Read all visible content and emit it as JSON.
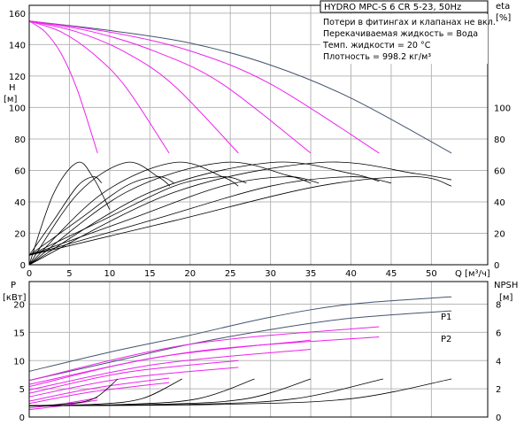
{
  "title": "HYDRO MPC-S 6 CR 5-23, 50Hz",
  "info_lines": [
    "Потери в фитингах и клапанах не вкл.",
    "Перекачиваемая жидкость = Вода",
    "Темп. жидкости = 20 °C",
    "Плотность = 998.2 кг/м³"
  ],
  "colors": {
    "envelope": "#44546e",
    "curve": "#ee22ee",
    "eta": "#000000",
    "grid": "#b8b8b8",
    "npsh": "#000000"
  },
  "chart_data": [
    {
      "type": "line",
      "name": "head",
      "y_axis": {
        "label": "H",
        "unit": "[м]",
        "ticks": [
          0,
          20,
          40,
          60,
          80,
          100,
          120,
          140,
          160
        ],
        "ylim": [
          0,
          165
        ]
      },
      "y2_axis": {
        "label": "eta",
        "unit": "[%]",
        "ticks": [
          0,
          20,
          40,
          60,
          80,
          100
        ],
        "ylim": [
          0,
          165
        ]
      },
      "x_axis": {
        "label": "Q [м³/ч]",
        "ticks": [
          0,
          5,
          10,
          15,
          20,
          25,
          30,
          35,
          40,
          45,
          50
        ],
        "xlim": [
          0,
          57
        ]
      },
      "grid": true,
      "series": [
        {
          "kind": "H-envelope",
          "points": [
            [
              0,
              155
            ],
            [
              10,
              149
            ],
            [
              20,
              141
            ],
            [
              30,
              127
            ],
            [
              40,
              106
            ],
            [
              52.5,
              71
            ]
          ]
        },
        {
          "kind": "H",
          "points": [
            [
              0,
              155
            ],
            [
              2,
              148
            ],
            [
              4,
              134
            ],
            [
              6,
              111
            ],
            [
              8.5,
              71
            ]
          ]
        },
        {
          "kind": "H",
          "points": [
            [
              0,
              155
            ],
            [
              4,
              148
            ],
            [
              8,
              134
            ],
            [
              12,
              113
            ],
            [
              17.4,
              71
            ]
          ]
        },
        {
          "kind": "H",
          "points": [
            [
              0,
              155
            ],
            [
              6,
              148
            ],
            [
              12,
              135
            ],
            [
              18,
              114
            ],
            [
              26,
              71
            ]
          ]
        },
        {
          "kind": "H",
          "points": [
            [
              0,
              155
            ],
            [
              8,
              148
            ],
            [
              16,
              135
            ],
            [
              24,
              115
            ],
            [
              35,
              71
            ]
          ]
        },
        {
          "kind": "H",
          "points": [
            [
              0,
              155
            ],
            [
              10,
              148
            ],
            [
              20,
              136
            ],
            [
              30,
              115
            ],
            [
              43.5,
              71
            ]
          ]
        },
        {
          "kind": "eta",
          "points": [
            [
              0,
              0
            ],
            [
              3,
              45
            ],
            [
              6,
              65
            ],
            [
              8,
              55
            ],
            [
              10,
              35
            ]
          ]
        },
        {
          "kind": "eta",
          "points": [
            [
              0,
              0
            ],
            [
              6,
              45
            ],
            [
              12,
              65
            ],
            [
              16,
              56
            ],
            [
              17.5,
              50
            ]
          ]
        },
        {
          "kind": "eta",
          "points": [
            [
              0,
              0
            ],
            [
              9,
              45
            ],
            [
              18,
              65
            ],
            [
              24,
              56
            ],
            [
              26,
              50
            ]
          ]
        },
        {
          "kind": "eta",
          "points": [
            [
              0,
              0
            ],
            [
              12,
              46
            ],
            [
              24,
              65
            ],
            [
              32,
              57
            ],
            [
              35,
              52
            ]
          ]
        },
        {
          "kind": "eta",
          "points": [
            [
              0,
              0
            ],
            [
              15,
              46
            ],
            [
              30,
              65
            ],
            [
              40,
              58
            ],
            [
              43.5,
              53
            ]
          ]
        },
        {
          "kind": "eta",
          "points": [
            [
              0,
              0
            ],
            [
              18,
              46
            ],
            [
              36,
              65
            ],
            [
              48,
              58
            ],
            [
              52.5,
              54
            ]
          ]
        },
        {
          "kind": "eta",
          "points": [
            [
              0,
              6
            ],
            [
              3,
              28
            ],
            [
              6,
              50
            ],
            [
              8,
              56
            ],
            [
              9,
              52
            ]
          ]
        },
        {
          "kind": "eta",
          "points": [
            [
              0,
              6
            ],
            [
              6,
              28
            ],
            [
              12,
              50
            ],
            [
              16,
              56
            ],
            [
              18,
              52
            ]
          ]
        },
        {
          "kind": "eta",
          "points": [
            [
              0,
              6
            ],
            [
              9,
              28
            ],
            [
              18,
              50
            ],
            [
              24,
              56
            ],
            [
              27,
              52
            ]
          ]
        },
        {
          "kind": "eta",
          "points": [
            [
              0,
              6
            ],
            [
              12,
              28
            ],
            [
              24,
              50
            ],
            [
              32,
              56
            ],
            [
              36,
              52
            ]
          ]
        },
        {
          "kind": "eta",
          "points": [
            [
              0,
              6
            ],
            [
              15,
              28
            ],
            [
              30,
              50
            ],
            [
              40,
              56
            ],
            [
              45,
              52
            ]
          ]
        },
        {
          "kind": "eta",
          "points": [
            [
              0,
              6
            ],
            [
              18,
              28
            ],
            [
              36,
              50
            ],
            [
              48,
              56
            ],
            [
              52.5,
              50
            ]
          ]
        }
      ]
    },
    {
      "type": "line",
      "name": "power",
      "y_axis": {
        "label": "P",
        "unit": "[кВт]",
        "ticks": [
          0,
          5,
          10,
          15,
          20
        ],
        "ylim": [
          0,
          24
        ]
      },
      "y2_axis": {
        "label": "NPSH",
        "unit": "[м]",
        "ticks": [
          0,
          2,
          4,
          6,
          8
        ],
        "ylim": [
          0,
          9.6
        ]
      },
      "x_axis": {
        "xlim": [
          0,
          57
        ]
      },
      "grid": true,
      "series": [
        {
          "name": "P1",
          "kind": "P-envelope",
          "points": [
            [
              0,
              8.1
            ],
            [
              10,
              11.5
            ],
            [
              20,
              14.5
            ],
            [
              30,
              17.7
            ],
            [
              40,
              20
            ],
            [
              52.5,
              21.3
            ]
          ]
        },
        {
          "name": "P2",
          "kind": "P-envelope",
          "points": [
            [
              0,
              6.5
            ],
            [
              10,
              9.7
            ],
            [
              20,
              12.9
            ],
            [
              30,
              15.5
            ],
            [
              40,
              17.5
            ],
            [
              52.5,
              18.8
            ]
          ]
        },
        {
          "kind": "P",
          "points": [
            [
              0,
              1.6
            ],
            [
              4,
              2.3
            ],
            [
              8.5,
              3.4
            ]
          ]
        },
        {
          "kind": "P",
          "points": [
            [
              0,
              2.8
            ],
            [
              8,
              5.1
            ],
            [
              17.4,
              6.9
            ]
          ]
        },
        {
          "kind": "P",
          "points": [
            [
              0,
              4.2
            ],
            [
              12,
              7.9
            ],
            [
              26,
              10
            ]
          ]
        },
        {
          "kind": "P",
          "points": [
            [
              0,
              5.4
            ],
            [
              16,
              10.6
            ],
            [
              35,
              13.6
            ]
          ]
        },
        {
          "kind": "P",
          "points": [
            [
              0,
              6.5
            ],
            [
              20,
              12.9
            ],
            [
              43.5,
              16
            ]
          ]
        },
        {
          "kind": "P",
          "points": [
            [
              0,
              1.3
            ],
            [
              4,
              2
            ],
            [
              8.5,
              3
            ]
          ]
        },
        {
          "kind": "P",
          "points": [
            [
              0,
              2.4
            ],
            [
              8,
              4.5
            ],
            [
              17.4,
              6.1
            ]
          ]
        },
        {
          "kind": "P",
          "points": [
            [
              0,
              3.6
            ],
            [
              12,
              6.9
            ],
            [
              26,
              8.8
            ]
          ]
        },
        {
          "kind": "P",
          "points": [
            [
              0,
              4.8
            ],
            [
              16,
              9.4
            ],
            [
              35,
              12
            ]
          ]
        },
        {
          "kind": "P",
          "points": [
            [
              0,
              5.8
            ],
            [
              20,
              11.5
            ],
            [
              43.5,
              14.2
            ]
          ]
        },
        {
          "kind": "NPSH",
          "points": [
            [
              0,
              0.8
            ],
            [
              4,
              0.9
            ],
            [
              8,
              1.3
            ],
            [
              11,
              2.7
            ]
          ]
        },
        {
          "kind": "NPSH",
          "points": [
            [
              0,
              0.8
            ],
            [
              8,
              0.9
            ],
            [
              14,
              1.3
            ],
            [
              19,
              2.7
            ]
          ]
        },
        {
          "kind": "NPSH",
          "points": [
            [
              0,
              0.8
            ],
            [
              12,
              0.9
            ],
            [
              21,
              1.3
            ],
            [
              28,
              2.7
            ]
          ]
        },
        {
          "kind": "NPSH",
          "points": [
            [
              0,
              0.8
            ],
            [
              16,
              0.9
            ],
            [
              27,
              1.3
            ],
            [
              35,
              2.7
            ]
          ]
        },
        {
          "kind": "NPSH",
          "points": [
            [
              0,
              0.8
            ],
            [
              20,
              0.9
            ],
            [
              33,
              1.3
            ],
            [
              44,
              2.7
            ]
          ]
        },
        {
          "kind": "NPSH",
          "points": [
            [
              0,
              0.8
            ],
            [
              24,
              0.9
            ],
            [
              40,
              1.3
            ],
            [
              52.5,
              2.7
            ]
          ]
        }
      ]
    }
  ]
}
